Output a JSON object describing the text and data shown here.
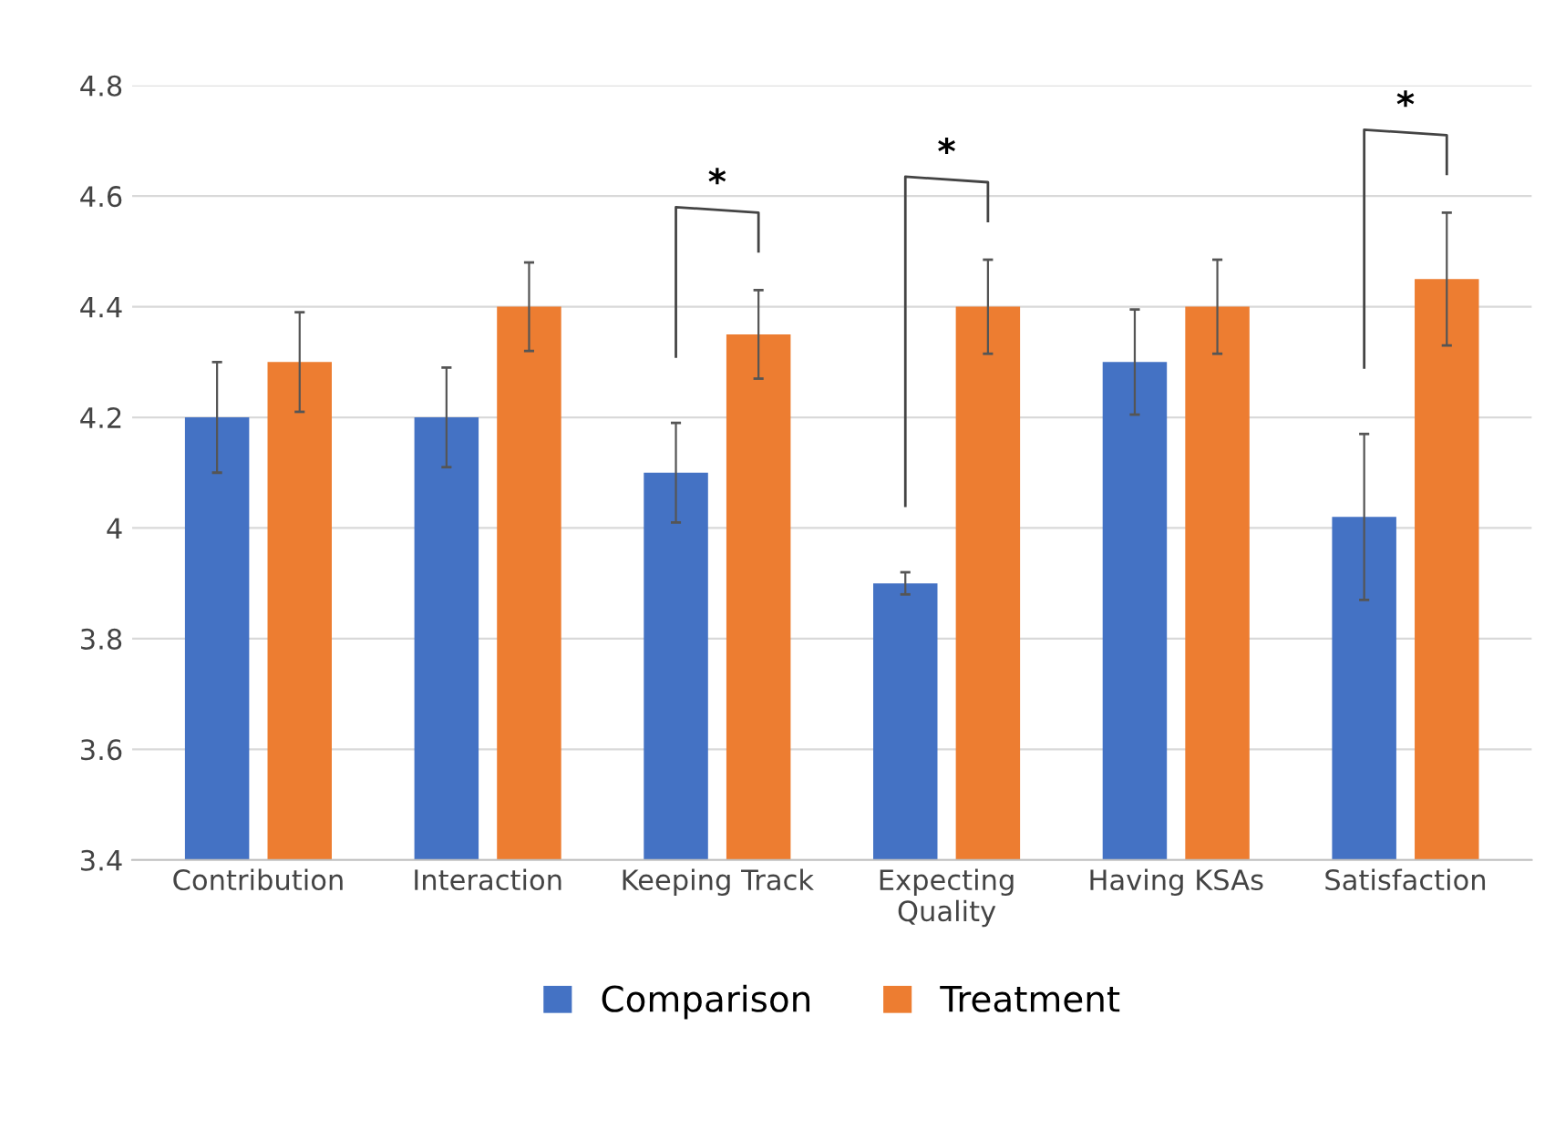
{
  "chart_data": {
    "type": "bar",
    "categories": [
      "Contribution",
      "Interaction",
      "Keeping Track",
      "Expecting\nQuality",
      "Having KSAs",
      "Satisfaction"
    ],
    "series": [
      {
        "name": "Comparison",
        "color": "#4472c4",
        "values": [
          4.2,
          4.2,
          4.1,
          3.9,
          4.3,
          4.02
        ],
        "errors": [
          0.1,
          0.09,
          0.09,
          0.02,
          0.095,
          0.15
        ]
      },
      {
        "name": "Treatment",
        "color": "#ed7d31",
        "values": [
          4.3,
          4.4,
          4.35,
          4.4,
          4.4,
          4.45
        ],
        "errors": [
          0.09,
          0.08,
          0.08,
          0.085,
          0.085,
          0.12
        ]
      }
    ],
    "ylim": [
      3.4,
      4.8
    ],
    "yticks": [
      3.4,
      3.6,
      3.8,
      4,
      4.2,
      4.4,
      4.6,
      4.8
    ],
    "grid": "y",
    "legend": "bottom",
    "annotations": [
      "*",
      "*",
      "*"
    ]
  }
}
